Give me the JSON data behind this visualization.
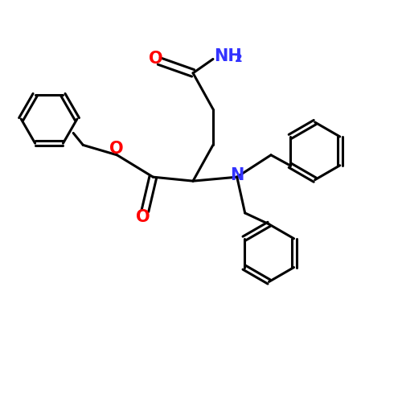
{
  "background_color": "#ffffff",
  "bond_color": "#000000",
  "oxygen_color": "#ff0000",
  "nitrogen_color": "#3333ff",
  "bond_width": 2.2,
  "figsize": [
    5.0,
    5.0
  ],
  "dpi": 100,
  "xlim": [
    0,
    10
  ],
  "ylim": [
    0,
    10
  ]
}
